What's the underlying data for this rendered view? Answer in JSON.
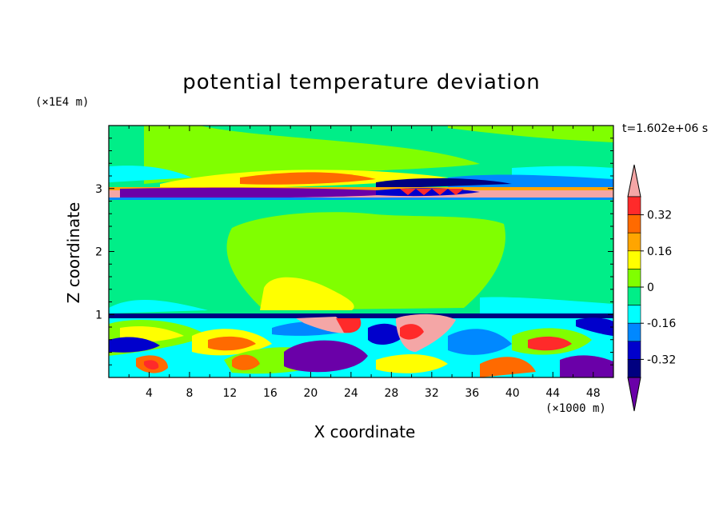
{
  "chart_data": {
    "type": "heatmap",
    "title": "potential temperature deviation",
    "xlabel": "X coordinate",
    "ylabel": "Z coordinate",
    "x_multiplier": "(×1000 m)",
    "y_multiplier": "(×1E4 m)",
    "time_label": "t=1.602e+06 s",
    "xlim": [
      0,
      50
    ],
    "ylim": [
      0,
      4
    ],
    "x_ticks": [
      "4",
      "8",
      "12",
      "16",
      "20",
      "24",
      "28",
      "32",
      "36",
      "40",
      "44",
      "48"
    ],
    "y_ticks": [
      "1",
      "2",
      "3"
    ],
    "colorbar": {
      "tick_labels": [
        "0.32",
        "0.16",
        "0",
        "-0.16",
        "-0.32"
      ],
      "tick_values": [
        0.32,
        0.16,
        0,
        -0.16,
        -0.32
      ],
      "levels": [
        {
          "color": "#f4a6a6"
        },
        {
          "color": "#ff2a2a"
        },
        {
          "color": "#ff6a00"
        },
        {
          "color": "#ffa500"
        },
        {
          "color": "#ffff00"
        },
        {
          "color": "#80ff00"
        },
        {
          "color": "#00ee88"
        },
        {
          "color": "#00ffff"
        },
        {
          "color": "#0088ff"
        },
        {
          "color": "#0000cc"
        },
        {
          "color": "#000080"
        },
        {
          "color": "#6a00a8"
        }
      ]
    }
  }
}
